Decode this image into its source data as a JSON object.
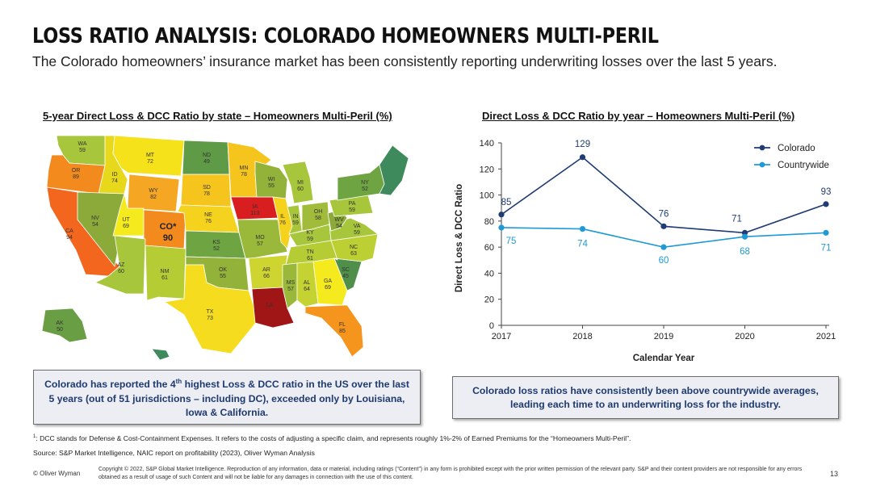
{
  "header": {
    "title": "LOSS RATIO ANALYSIS: COLORADO HOMEOWNERS MULTI-PERIL",
    "subtitle": "The Colorado homeowners’ insurance market has been consistently reporting underwriting losses over the last 5 years."
  },
  "map_panel": {
    "title": "5-year Direct Loss & DCC Ratio by state – Homeowners Multi-Peril (%)",
    "states": [
      {
        "code": "WA",
        "value": "59",
        "color": "#a8c63c"
      },
      {
        "code": "OR",
        "value": "89",
        "color": "#f28a1e"
      },
      {
        "code": "CA",
        "value": "94",
        "color": "#f2661e"
      },
      {
        "code": "ID",
        "value": "74",
        "color": "#e8d81c"
      },
      {
        "code": "NV",
        "value": "54",
        "color": "#8caa3a"
      },
      {
        "code": "MT",
        "value": "72",
        "color": "#f5e21a"
      },
      {
        "code": "WY",
        "value": "82",
        "color": "#f5a623"
      },
      {
        "code": "UT",
        "value": "69",
        "color": "#f4ea1e"
      },
      {
        "code": "CO*",
        "value": "90",
        "color": "#f28a1e"
      },
      {
        "code": "AZ",
        "value": "60",
        "color": "#a8c63c"
      },
      {
        "code": "NM",
        "value": "61",
        "color": "#b5cc34"
      },
      {
        "code": "ND",
        "value": "49",
        "color": "#5f9a46"
      },
      {
        "code": "SD",
        "value": "78",
        "color": "#f5c51e"
      },
      {
        "code": "NE",
        "value": "76",
        "color": "#f5d21e"
      },
      {
        "code": "KS",
        "value": "52",
        "color": "#6fa442"
      },
      {
        "code": "OK",
        "value": "55",
        "color": "#93b23a"
      },
      {
        "code": "TX",
        "value": "73",
        "color": "#f5dc1e"
      },
      {
        "code": "MN",
        "value": "78",
        "color": "#f5c51e"
      },
      {
        "code": "IA",
        "value": "113",
        "color": "#d81e1e"
      },
      {
        "code": "MO",
        "value": "57",
        "color": "#9ab83a"
      },
      {
        "code": "AR",
        "value": "66",
        "color": "#cfd530"
      },
      {
        "code": "LA",
        "value": "",
        "color": "#a01616"
      },
      {
        "code": "WI",
        "value": "55",
        "color": "#93b23a"
      },
      {
        "code": "IL",
        "value": "76",
        "color": "#f5d21e"
      },
      {
        "code": "MI",
        "value": "60",
        "color": "#a8c63c"
      },
      {
        "code": "IN",
        "value": "59",
        "color": "#a8c63c"
      },
      {
        "code": "OH",
        "value": "58",
        "color": "#a0bc3a"
      },
      {
        "code": "KY",
        "value": "59",
        "color": "#a8c63c"
      },
      {
        "code": "TN",
        "value": "61",
        "color": "#b5cc34"
      },
      {
        "code": "MS",
        "value": "57",
        "color": "#9ab83a"
      },
      {
        "code": "AL",
        "value": "64",
        "color": "#c4d232"
      },
      {
        "code": "GA",
        "value": "69",
        "color": "#f4ea1e"
      },
      {
        "code": "FL",
        "value": "85",
        "color": "#f5951e"
      },
      {
        "code": "SC",
        "value": "45",
        "color": "#4f8f4a"
      },
      {
        "code": "NC",
        "value": "63",
        "color": "#bccf33"
      },
      {
        "code": "VA",
        "value": "59",
        "color": "#a8c63c"
      },
      {
        "code": "WV",
        "value": "54",
        "color": "#8caa3a"
      },
      {
        "code": "PA",
        "value": "59",
        "color": "#a8c63c"
      },
      {
        "code": "NY",
        "value": "52",
        "color": "#6fa442"
      },
      {
        "code": "AK",
        "value": "50",
        "color": "#6a9e44"
      }
    ]
  },
  "chart_data": {
    "type": "line",
    "title": "Direct Loss & DCC Ratio by year – Homeowners Multi-Peril (%)",
    "xlabel": "Calendar Year",
    "ylabel": "Direct Loss & DCC Ratio",
    "x": [
      "2017",
      "2018",
      "2019",
      "2020",
      "2021"
    ],
    "ylim": [
      0,
      140
    ],
    "yticks": [
      0,
      20,
      40,
      60,
      80,
      100,
      120,
      140
    ],
    "legend_position": "top-right",
    "grid": false,
    "series": [
      {
        "name": "Colorado",
        "values": [
          85,
          129,
          76,
          71,
          93
        ],
        "color": "#1f3c74"
      },
      {
        "name": "Countrywide",
        "values": [
          75,
          74,
          60,
          68,
          71
        ],
        "color": "#1e9ad6"
      }
    ]
  },
  "callouts": {
    "left": "Colorado has reported the 4th highest Loss & DCC ratio in the US over the last 5 years (out of 51 jurisdictions – including DC), exceeded only by Louisiana, Iowa & California.",
    "right": "Colorado loss ratios have consistently been above countrywide averages, leading each time to an underwriting loss for the industry."
  },
  "footnotes": {
    "note1": "1: DCC stands for Defense & Cost-Containment Expenses. It refers to the costs of adjusting a specific claim, and represents roughly 1%-2% of Earned Premiums for the “Homeowners Multi-Peril”.",
    "source": "Source: S&P Market Intelligence, NAIC report on profitability (2023), Oliver Wyman Analysis"
  },
  "footer": {
    "brand": "© Oliver Wyman",
    "copyright": "Copyright © 2022, S&P Global Market Intelligence. Reproduction of any information, data or material, including ratings (“Content”) in any form is prohibited except with the prior written permission of the relevant party. S&P and their content providers are not responsible for any errors obtained as a result of usage of such Content and will not be liable for any damages in connection with the use of this content.",
    "page": "13"
  },
  "colors": {
    "colorado": "#1f3c74",
    "countrywide": "#1e9ad6",
    "callout_text": "#1f3a6e",
    "northeast": "#3e8a5c"
  }
}
